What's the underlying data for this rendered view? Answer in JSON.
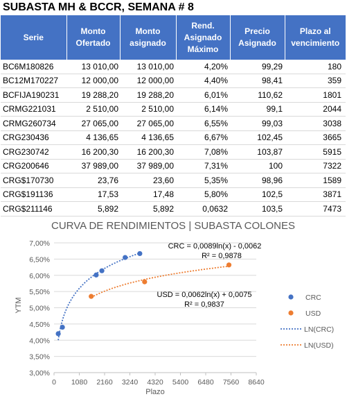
{
  "title": "SUBASTA MH & BCCR, SEMANA # 8",
  "table": {
    "headers": [
      "Serie",
      "Monto Ofertado",
      "Monto asignado",
      "Rend. Asignado Máximo",
      "Precio Asignado",
      "Plazo al vencimiento"
    ],
    "rows": [
      [
        "BC6M180826",
        "13 010,00",
        "13 010,00",
        "4,20%",
        "99,29",
        "180"
      ],
      [
        "BC12M170227",
        "12 000,00",
        "12 000,00",
        "4,40%",
        "98,41",
        "359"
      ],
      [
        "BCFIJA190231",
        "19 288,20",
        "19 288,20",
        "6,01%",
        "110,62",
        "1801"
      ],
      [
        "CRMG221031",
        "2 510,00",
        "2 510,00",
        "6,14%",
        "99,1",
        "2044"
      ],
      [
        "CRMG260734",
        "27 065,00",
        "27 065,00",
        "6,55%",
        "99,03",
        "3038"
      ],
      [
        "CRG230436",
        "4 136,65",
        "4 136,65",
        "6,67%",
        "102,45",
        "3665"
      ],
      [
        "CRG230742",
        "16 200,30",
        "16 200,30",
        "7,08%",
        "103,87",
        "5915"
      ],
      [
        "CRG200646",
        "37 989,00",
        "37 989,00",
        "7,31%",
        "100",
        "7322"
      ],
      [
        "CRG$170730",
        "23,76",
        "23,60",
        "5,35%",
        "98,96",
        "1589"
      ],
      [
        "CRG$191136",
        "17,53",
        "17,48",
        "5,80%",
        "102,5",
        "3871"
      ],
      [
        "CRG$211146",
        "5,892",
        "5,892",
        "0,0632",
        "103,5",
        "7473"
      ]
    ]
  },
  "chart_data": {
    "type": "scatter",
    "title": "CURVA DE RENDIMIENTOS | SUBASTA COLONES",
    "xlabel": "Plazo",
    "ylabel": "YTM",
    "xlim": [
      0,
      8640
    ],
    "ylim": [
      3.0,
      7.0
    ],
    "x_ticks": [
      "0",
      "1080",
      "2160",
      "3240",
      "4320",
      "5400",
      "6480",
      "7560",
      "8640"
    ],
    "y_ticks": [
      "3,00%",
      "3,50%",
      "4,00%",
      "4,50%",
      "5,00%",
      "5,50%",
      "6,00%",
      "6,50%",
      "7,00%"
    ],
    "grid": true,
    "legend_position": "right",
    "series": [
      {
        "name": "CRC",
        "color": "#4472c4",
        "points": [
          [
            180,
            4.2
          ],
          [
            359,
            4.4
          ],
          [
            1801,
            6.01
          ],
          [
            2044,
            6.14
          ],
          [
            3038,
            6.55
          ],
          [
            3665,
            6.67
          ]
        ]
      },
      {
        "name": "USD",
        "color": "#ed7d31",
        "points": [
          [
            1589,
            5.35
          ],
          [
            3871,
            5.8
          ],
          [
            7473,
            6.32
          ]
        ]
      }
    ],
    "trendlines": [
      {
        "name": "LN(CRC)",
        "color": "#4472c4",
        "a": 0.0089,
        "b": -0.0062,
        "x_range": [
          180,
          3665
        ],
        "equation": "CRC = 0,0089ln(x) - 0,0062",
        "r2": "R² = 0,9878"
      },
      {
        "name": "LN(USD)",
        "color": "#ed7d31",
        "a": 0.0062,
        "b": 0.0075,
        "x_range": [
          1589,
          7473
        ],
        "equation": "USD = 0,0062ln(x) + 0,0075",
        "r2": "R² = 0,9837"
      }
    ]
  }
}
